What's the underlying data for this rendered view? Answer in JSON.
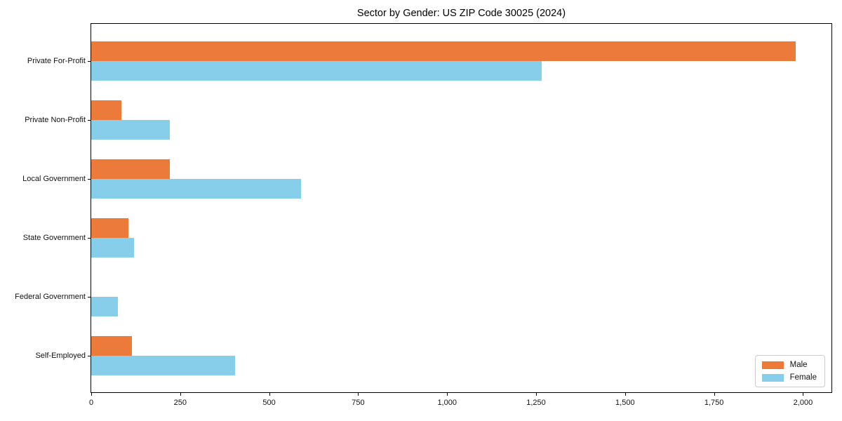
{
  "title": "Sector by Gender: US ZIP Code 30025 (2024)",
  "colors": {
    "male": "#EC7A3B",
    "female": "#87CEEB",
    "axis": "#000000",
    "background": "#ffffff"
  },
  "chart_data": {
    "type": "bar",
    "orientation": "horizontal",
    "title": "Sector by Gender: US ZIP Code 30025 (2024)",
    "categories": [
      "Private For-Profit",
      "Private Non-Profit",
      "Local Government",
      "State Government",
      "Federal Government",
      "Self-Employed"
    ],
    "series": [
      {
        "name": "Male",
        "color": "#EC7A3B",
        "values": [
          1980,
          85,
          220,
          105,
          0,
          115
        ]
      },
      {
        "name": "Female",
        "color": "#87CEEB",
        "values": [
          1265,
          220,
          590,
          120,
          75,
          405
        ]
      }
    ],
    "xlabel": "",
    "ylabel": "",
    "xlim": [
      0,
      2080
    ],
    "xticks": [
      0,
      250,
      500,
      750,
      1000,
      1250,
      1500,
      1750,
      2000
    ],
    "xtick_labels": [
      "0",
      "250",
      "500",
      "750",
      "1,000",
      "1,250",
      "1,500",
      "1,750",
      "2,000"
    ],
    "grid": false,
    "legend_position": "lower right"
  }
}
